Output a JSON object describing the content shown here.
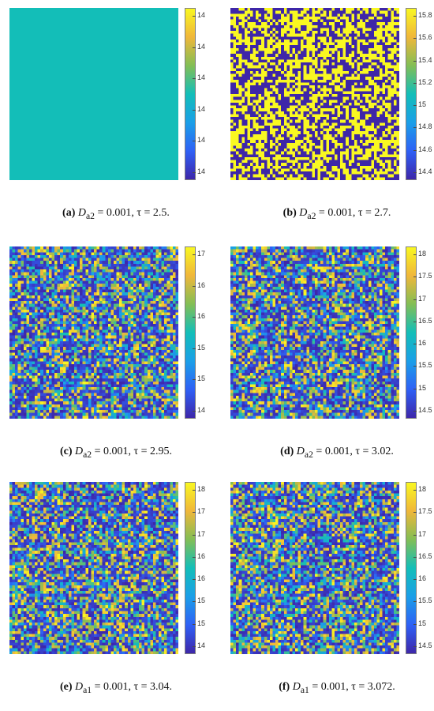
{
  "chart_data": [
    {
      "type": "heatmap",
      "panel_label": "(a)",
      "caption": "D_{a2} = 0.001, τ = 2.5.",
      "caption_symbol": "D",
      "caption_subscript": "a2",
      "caption_tail": " = 0.001, τ = 2.5.",
      "colorbar_ticks": [
        "14",
        "14",
        "14",
        "14",
        "14",
        "14"
      ],
      "colormap": [
        "#3E26A8",
        "#2F60F5",
        "#1B9FE8",
        "#13BEB8",
        "#83BE55",
        "#F0B73A",
        "#F9F821"
      ],
      "field": {
        "rows": 60,
        "cols": 60,
        "value": 14.0
      }
    },
    {
      "type": "heatmap",
      "panel_label": "(b)",
      "caption": "D_{a2} = 0.001, τ = 2.7.",
      "caption_symbol": "D",
      "caption_subscript": "a2",
      "caption_tail": " = 0.001, τ = 2.7.",
      "colorbar_ticks": [
        "15.8",
        "15.6",
        "15.4",
        "15.2",
        "15",
        "14.8",
        "14.6",
        "14.4"
      ],
      "colormap": [
        "#3E26A8",
        "#2F60F5",
        "#1B9FE8",
        "#13BEB8",
        "#83BE55",
        "#F0B73A",
        "#F9F821"
      ],
      "field": {
        "rows": 60,
        "cols": 60,
        "min": 14.35,
        "max": 15.9,
        "distribution": "binary"
      }
    },
    {
      "type": "heatmap",
      "panel_label": "(c)",
      "caption": "D_{a2} = 0.001, τ = 2.95.",
      "caption_symbol": "D",
      "caption_subscript": "a2",
      "caption_tail": " = 0.001, τ = 2.95.",
      "colorbar_ticks": [
        "17",
        "16",
        "16",
        "15",
        "15",
        "14"
      ],
      "colormap": [
        "#3E26A8",
        "#2F60F5",
        "#1B9FE8",
        "#13BEB8",
        "#83BE55",
        "#F0B73A",
        "#F9F821"
      ],
      "field": {
        "rows": 60,
        "cols": 60,
        "min": 13.4,
        "max": 17.5,
        "distribution": "mixed"
      }
    },
    {
      "type": "heatmap",
      "panel_label": "(d)",
      "caption": "D_{a2} = 0.001, τ = 3.02.",
      "caption_symbol": "D",
      "caption_subscript": "a2",
      "caption_tail": " = 0.001, τ = 3.02.",
      "colorbar_ticks": [
        "18",
        "17.5",
        "17",
        "16.5",
        "16",
        "15.5",
        "15",
        "14.5"
      ],
      "colormap": [
        "#3E26A8",
        "#2F60F5",
        "#1B9FE8",
        "#13BEB8",
        "#83BE55",
        "#F0B73A",
        "#F9F821"
      ],
      "field": {
        "rows": 60,
        "cols": 60,
        "min": 14.1,
        "max": 18.0,
        "distribution": "mixed"
      }
    },
    {
      "type": "heatmap",
      "panel_label": "(e)",
      "caption": "D_{a1} = 0.001, τ = 3.04.",
      "caption_symbol": "D",
      "caption_subscript": "a1",
      "caption_tail": " = 0.001, τ = 3.04.",
      "colorbar_ticks": [
        "18",
        "17",
        "17",
        "16",
        "16",
        "15",
        "15",
        "14"
      ],
      "colormap": [
        "#3E26A8",
        "#2F60F5",
        "#1B9FE8",
        "#13BEB8",
        "#83BE55",
        "#F0B73A",
        "#F9F821"
      ],
      "field": {
        "rows": 60,
        "cols": 60,
        "min": 13.4,
        "max": 18.5,
        "distribution": "mixed"
      }
    },
    {
      "type": "heatmap",
      "panel_label": "(f)",
      "caption": "D_{a1} = 0.001, τ = 3.072.",
      "caption_symbol": "D",
      "caption_subscript": "a1",
      "caption_tail": " = 0.001, τ = 3.072.",
      "colorbar_ticks": [
        "18",
        "17.5",
        "17",
        "16.5",
        "16",
        "15.5",
        "15",
        "14.5"
      ],
      "colormap": [
        "#3E26A8",
        "#2F60F5",
        "#1B9FE8",
        "#13BEB8",
        "#83BE55",
        "#F0B73A",
        "#F9F821"
      ],
      "field": {
        "rows": 60,
        "cols": 60,
        "min": 14.1,
        "max": 18.5,
        "distribution": "mixed"
      }
    }
  ]
}
